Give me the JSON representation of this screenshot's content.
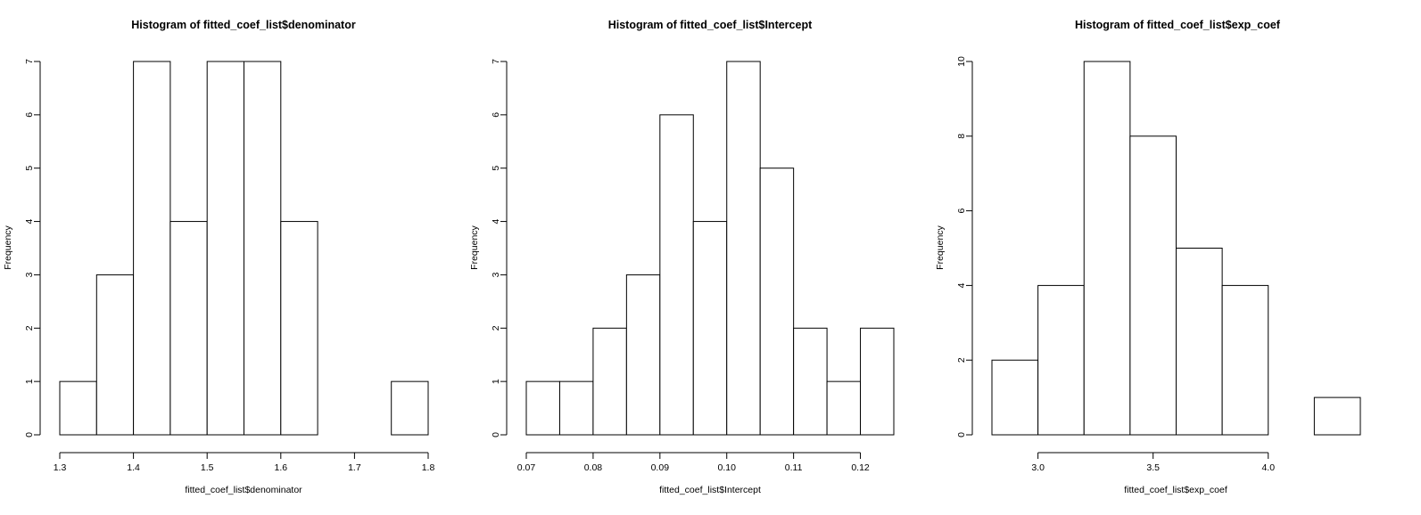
{
  "chart_data": [
    {
      "type": "bar",
      "title": "Histogram of fitted_coef_list$denominator",
      "xlabel": "fitted_coef_list$denominator",
      "ylabel": "Frequency",
      "bin_edges": [
        1.3,
        1.35,
        1.4,
        1.45,
        1.5,
        1.55,
        1.6,
        1.65,
        1.7,
        1.75,
        1.8
      ],
      "values": [
        1,
        3,
        7,
        4,
        7,
        7,
        4,
        0,
        0,
        1
      ],
      "xlim": [
        1.3,
        1.8
      ],
      "ylim": [
        0,
        7
      ],
      "x_ticks": [
        1.3,
        1.4,
        1.5,
        1.6,
        1.7,
        1.8
      ],
      "x_tick_labels": [
        "1.3",
        "1.4",
        "1.5",
        "1.6",
        "1.7",
        "1.8"
      ],
      "y_ticks": [
        0,
        1,
        2,
        3,
        4,
        5,
        6,
        7
      ],
      "y_tick_labels": [
        "0",
        "1",
        "2",
        "3",
        "4",
        "5",
        "6",
        "7"
      ]
    },
    {
      "type": "bar",
      "title": "Histogram of fitted_coef_list$Intercept",
      "xlabel": "fitted_coef_list$Intercept",
      "ylabel": "Frequency",
      "bin_edges": [
        0.07,
        0.075,
        0.08,
        0.085,
        0.09,
        0.095,
        0.1,
        0.105,
        0.11,
        0.115,
        0.12,
        0.125
      ],
      "values": [
        1,
        1,
        2,
        3,
        6,
        4,
        7,
        5,
        2,
        1,
        2
      ],
      "xlim": [
        0.07,
        0.125
      ],
      "ylim": [
        0,
        7
      ],
      "x_ticks": [
        0.07,
        0.08,
        0.09,
        0.1,
        0.11,
        0.12
      ],
      "x_tick_labels": [
        "0.07",
        "0.08",
        "0.09",
        "0.10",
        "0.11",
        "0.12"
      ],
      "y_ticks": [
        0,
        1,
        2,
        3,
        4,
        5,
        6,
        7
      ],
      "y_tick_labels": [
        "0",
        "1",
        "2",
        "3",
        "4",
        "5",
        "6",
        "7"
      ]
    },
    {
      "type": "bar",
      "title": "Histogram of fitted_coef_list$exp_coef",
      "xlabel": "fitted_coef_list$exp_coef",
      "ylabel": "Frequency",
      "bin_edges": [
        2.8,
        3.0,
        3.2,
        3.4,
        3.6,
        3.8,
        4.0,
        4.2,
        4.4
      ],
      "values": [
        2,
        4,
        10,
        8,
        5,
        4,
        0,
        1
      ],
      "xlim": [
        2.8,
        4.4
      ],
      "ylim": [
        0,
        10
      ],
      "x_ticks": [
        3.0,
        3.5,
        4.0
      ],
      "x_tick_labels": [
        "3.0",
        "3.5",
        "4.0"
      ],
      "y_ticks": [
        0,
        2,
        4,
        6,
        8,
        10
      ],
      "y_tick_labels": [
        "0",
        "2",
        "4",
        "6",
        "8",
        "10"
      ]
    }
  ]
}
